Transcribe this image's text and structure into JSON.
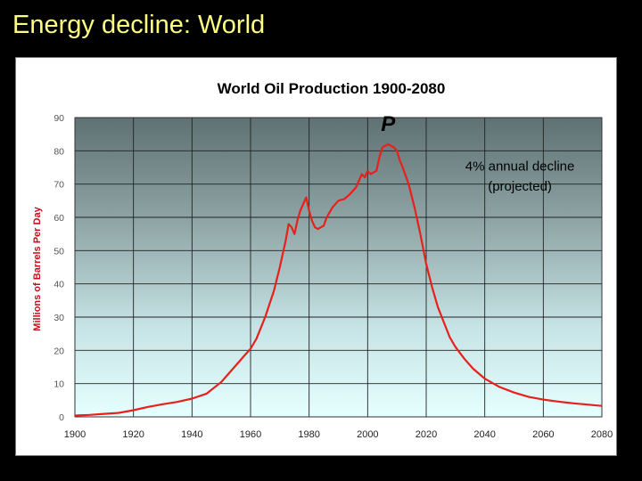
{
  "slide": {
    "title": "Energy decline: World"
  },
  "chart_data": {
    "type": "line",
    "title": "World Oil Production 1900-2080",
    "xlabel": "",
    "ylabel": "Millions of Barrels Per Day",
    "xlim": [
      1900,
      2080
    ],
    "ylim": [
      0,
      90
    ],
    "x_ticks": [
      1900,
      1920,
      1940,
      1960,
      1980,
      2000,
      2020,
      2040,
      2060,
      2080
    ],
    "y_ticks": [
      0,
      10,
      20,
      30,
      40,
      50,
      60,
      70,
      80,
      90
    ],
    "grid": true,
    "background": "vertical gradient, dark grey-teal at top to pale cyan at bottom",
    "line_color": "#e8201c",
    "series": [
      {
        "name": "",
        "x": [
          1900,
          1905,
          1910,
          1915,
          1920,
          1925,
          1930,
          1935,
          1940,
          1945,
          1950,
          1955,
          1958,
          1960,
          1962,
          1965,
          1968,
          1970,
          1972,
          1973,
          1974,
          1975,
          1976,
          1977,
          1978,
          1979,
          1980,
          1981,
          1982,
          1983,
          1984,
          1985,
          1986,
          1988,
          1990,
          1992,
          1994,
          1996,
          1997,
          1998,
          1999,
          2000,
          2001,
          2002,
          2003,
          2004,
          2005,
          2006,
          2007,
          2008,
          2009,
          2010,
          2011,
          2012,
          2014,
          2016,
          2018,
          2020,
          2022,
          2024,
          2026,
          2028,
          2030,
          2033,
          2036,
          2040,
          2045,
          2050,
          2055,
          2060,
          2065,
          2070,
          2075,
          2080
        ],
        "y": [
          0.4,
          0.6,
          0.9,
          1.2,
          2.0,
          3.0,
          3.8,
          4.5,
          5.5,
          7.0,
          10.5,
          15.5,
          18.5,
          20.5,
          23.5,
          30,
          38,
          45,
          53,
          58,
          57,
          55,
          59,
          62,
          64,
          66,
          62,
          59,
          57,
          56.5,
          57,
          57.5,
          60,
          63,
          65,
          65.5,
          67,
          69,
          71,
          73,
          72,
          74,
          73,
          73.5,
          74,
          78,
          81,
          81.5,
          82,
          81.5,
          81,
          80,
          77,
          75,
          70,
          63,
          55,
          46,
          39,
          33,
          28.5,
          24,
          21,
          17.5,
          14.5,
          11.5,
          9,
          7.3,
          6,
          5.2,
          4.6,
          4.1,
          3.7,
          3.3
        ]
      }
    ],
    "annotations": [
      {
        "text": "P",
        "x": 2007,
        "y": 86
      },
      {
        "text": "4% annual decline",
        "x": 2052,
        "y": 74
      },
      {
        "text": "(projected)",
        "x": 2052,
        "y": 68
      }
    ]
  }
}
